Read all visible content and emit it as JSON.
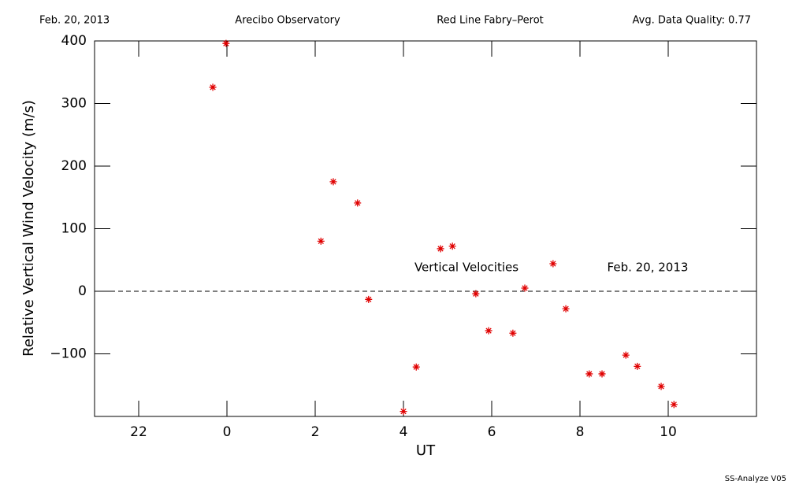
{
  "header": {
    "date": "Feb. 20, 2013",
    "site": "Arecibo Observatory",
    "instrument": "Red Line Fabry–Perot",
    "quality": "Avg. Data Quality: 0.77"
  },
  "footer": "SS-Analyze V05",
  "chart_data": {
    "type": "scatter",
    "xlabel": "UT",
    "ylabel": "Relative Vertical Wind Velocity (m/s)",
    "annotations": [
      "Vertical Velocities",
      "Feb. 20, 2013"
    ],
    "xlim": [
      -3,
      12
    ],
    "ylim": [
      -200,
      400
    ],
    "xticks": [
      {
        "value": -2,
        "label": "22"
      },
      0,
      2,
      4,
      6,
      8,
      10
    ],
    "yticks": [
      {
        "value": -100,
        "label": "−100"
      },
      0,
      100,
      200,
      300,
      400
    ],
    "hline": 0,
    "color": "#e00000",
    "x": [
      -0.32,
      -0.02,
      2.13,
      2.41,
      2.96,
      3.21,
      4.0,
      4.29,
      4.84,
      5.11,
      5.64,
      5.93,
      6.48,
      6.75,
      7.39,
      7.68,
      8.21,
      8.5,
      9.04,
      9.3,
      9.84,
      10.13
    ],
    "values": [
      326,
      396,
      80,
      175,
      141,
      -13,
      -192,
      -121,
      68,
      72,
      -4,
      -63,
      -67,
      5,
      44,
      -28,
      -132,
      -132,
      -102,
      -120,
      -152,
      -181
    ]
  }
}
